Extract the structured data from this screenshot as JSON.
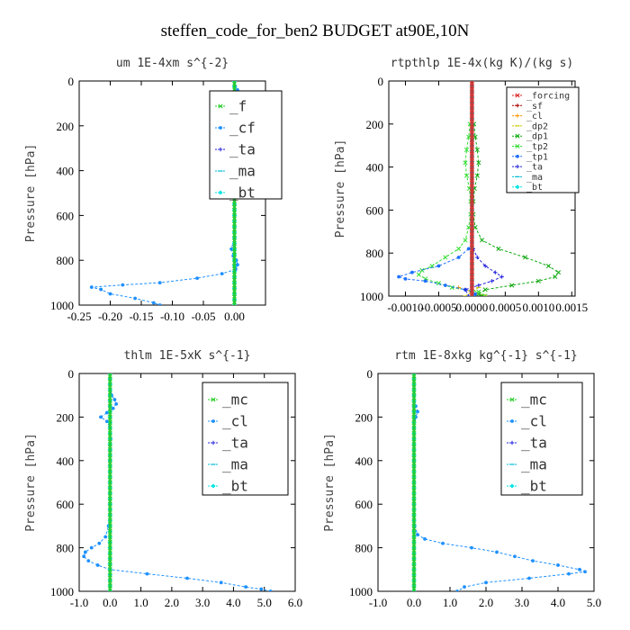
{
  "figure_title": "steffen_code_for_ben2  BUDGET at90E,10N",
  "chart_data": [
    {
      "type": "line",
      "title": "um  1E-4xm s^{-2}",
      "ylabel": "Pressure [hPa]",
      "xlabel": "",
      "xlim": [
        -0.25,
        0.05
      ],
      "ylim": [
        1000,
        0
      ],
      "xticks": [
        "-0.25",
        "-0.20",
        "-0.15",
        "-0.10",
        "-0.05",
        "0.00"
      ],
      "xtick_values": [
        -0.25,
        -0.2,
        -0.15,
        -0.1,
        -0.05,
        0.0
      ],
      "yticks": [
        "0",
        "200",
        "400",
        "600",
        "800",
        "1000"
      ],
      "ytick_values": [
        0,
        200,
        400,
        600,
        800,
        1000
      ],
      "legend_small": false,
      "legend": [
        "_f",
        "_cf",
        "_ta",
        "_ma",
        "_bt"
      ],
      "series": [
        {
          "name": "_f",
          "color": "#22cc22",
          "marker": "x",
          "pressure": [
            0,
            100,
            200,
            300,
            400,
            500,
            600,
            700,
            800,
            900,
            1000
          ],
          "values": [
            0,
            0,
            0,
            0,
            0,
            0,
            0,
            0,
            0,
            0,
            0
          ]
        },
        {
          "name": "_cf",
          "color": "#1e90ff",
          "marker": "dot",
          "pressure": [
            0,
            40,
            80,
            100,
            120,
            140,
            160,
            180,
            200,
            230,
            260,
            300,
            350,
            400,
            450,
            500,
            550,
            600,
            650,
            700,
            750,
            780,
            800,
            820,
            840,
            860,
            880,
            900,
            910,
            920,
            930,
            950,
            970,
            990,
            1000
          ],
          "values": [
            0,
            0.005,
            0.012,
            0.02,
            0.03,
            0.04,
            0.035,
            0.02,
            0.002,
            -0.018,
            -0.015,
            -0.005,
            -0.002,
            -0.003,
            0,
            0,
            0,
            0,
            0,
            0,
            -0.005,
            -0.002,
            0.003,
            0.005,
            0.002,
            -0.02,
            -0.06,
            -0.12,
            -0.18,
            -0.23,
            -0.215,
            -0.2,
            -0.16,
            -0.13,
            -0.12
          ]
        },
        {
          "name": "_ta",
          "color": "#2222dd",
          "marker": "plus",
          "pressure": [
            0,
            100,
            200,
            300,
            400,
            500,
            600,
            700,
            800,
            900,
            1000
          ],
          "values": [
            0,
            0,
            0,
            0,
            0,
            0,
            0,
            0,
            0,
            0,
            0
          ]
        },
        {
          "name": "_ma",
          "color": "#00bcd4",
          "marker": "dash",
          "pressure": [
            0,
            100,
            200,
            300,
            400,
            500,
            600,
            700,
            800,
            900,
            1000
          ],
          "values": [
            0,
            0,
            0,
            0,
            0,
            0,
            0,
            0,
            0,
            0,
            0
          ]
        },
        {
          "name": "_bt",
          "color": "#00e5e5",
          "marker": "diamond",
          "pressure": [
            0,
            100,
            200,
            300,
            400,
            500,
            600,
            700,
            800,
            900,
            1000
          ],
          "values": [
            0,
            0,
            0,
            0,
            0,
            0,
            0,
            0,
            0,
            0,
            0
          ]
        }
      ]
    },
    {
      "type": "line",
      "title": "rtpthlp  1E-4x(kg K)/(kg s)",
      "ylabel": "Pressure [hPa]",
      "xlabel": "",
      "xlim": [
        -0.00125,
        0.00155
      ],
      "ylim": [
        1000,
        0
      ],
      "xticks": [
        "-0.0010",
        "-0.0005",
        "0.0000",
        "0.0005",
        "0.0010",
        "0.0015"
      ],
      "xtick_values": [
        -0.001,
        -0.0005,
        0.0,
        0.0005,
        0.001,
        0.0015
      ],
      "yticks": [
        "0",
        "200",
        "400",
        "600",
        "800",
        "1000"
      ],
      "ytick_values": [
        0,
        200,
        400,
        600,
        800,
        1000
      ],
      "legend_small": true,
      "legend": [
        "_forcing",
        "_sf",
        "_cl",
        "_dp2",
        "_dp1",
        "_tp2",
        "_tp1",
        "_ta",
        "_ma",
        "_bt"
      ],
      "series": [
        {
          "name": "_forcing",
          "color": "#dd2222",
          "marker": "x",
          "pressure": [
            0,
            100,
            200,
            300,
            400,
            500,
            600,
            700,
            800,
            900,
            1000
          ],
          "values": [
            0,
            0,
            0,
            0,
            0,
            0,
            0,
            0,
            0,
            0,
            0
          ]
        },
        {
          "name": "_sf",
          "color": "#aa0000",
          "marker": "plus",
          "pressure": [
            0,
            200,
            400,
            600,
            800,
            1000
          ],
          "values": [
            0,
            0,
            0,
            0,
            0,
            0
          ]
        },
        {
          "name": "_cl",
          "color": "#ff9900",
          "marker": "plus",
          "pressure": [
            960,
            1000
          ],
          "values": [
            -0.0002,
            0.0002
          ]
        },
        {
          "name": "_dp2",
          "color": "#cccc00",
          "marker": "dash",
          "pressure": [
            960,
            1000
          ],
          "values": [
            0.0001,
            -0.0001
          ]
        },
        {
          "name": "_dp1",
          "color": "#11aa11",
          "marker": "x",
          "pressure": [
            200,
            260,
            320,
            380,
            440,
            500,
            560,
            620,
            680,
            740,
            780,
            820,
            860,
            890,
            910,
            930,
            950,
            970,
            990,
            1000
          ],
          "values": [
            3e-05,
            5e-05,
            8e-05,
            0.0001,
            8e-05,
            4e-05,
            2e-05,
            2e-05,
            5e-05,
            0.00015,
            0.0004,
            0.0008,
            0.00115,
            0.0013,
            0.00125,
            0.001,
            0.0006,
            0.0002,
            0.0001,
            0.00015
          ]
        },
        {
          "name": "_tp2",
          "color": "#33dd33",
          "marker": "x",
          "pressure": [
            200,
            260,
            320,
            380,
            440,
            500,
            560,
            620,
            680,
            740,
            780,
            820,
            860,
            880,
            900,
            920,
            940,
            960,
            980,
            1000
          ],
          "values": [
            -3e-05,
            -5e-05,
            -8e-05,
            -0.0001,
            -8e-05,
            -4e-05,
            -2e-05,
            -2e-05,
            -5e-05,
            -0.0001,
            -0.0002,
            -0.0004,
            -0.0006,
            -0.00075,
            -0.0008,
            -0.0007,
            -0.0005,
            -0.0003,
            0.0001,
            0.0002
          ]
        },
        {
          "name": "_tp1",
          "color": "#1e70ff",
          "marker": "dot",
          "pressure": [
            780,
            820,
            860,
            890,
            910,
            920,
            930,
            950,
            970,
            990,
            1000
          ],
          "values": [
            -5e-05,
            -0.0002,
            -0.0005,
            -0.0009,
            -0.0011,
            -0.001,
            -0.0007,
            -0.0004,
            -0.0001,
            5e-05,
            3e-05
          ]
        },
        {
          "name": "_ta",
          "color": "#2222dd",
          "marker": "plus",
          "pressure": [
            780,
            820,
            860,
            890,
            910,
            930,
            950,
            970,
            1000
          ],
          "values": [
            2e-05,
            8e-05,
            0.0002,
            0.00035,
            0.00045,
            0.0003,
            0.0001,
            -0.0001,
            -5e-05
          ]
        },
        {
          "name": "_ma",
          "color": "#00bcd4",
          "marker": "dash",
          "pressure": [
            0,
            200,
            400,
            600,
            800,
            1000
          ],
          "values": [
            0,
            0,
            0,
            0,
            0,
            0
          ]
        },
        {
          "name": "_bt",
          "color": "#00e5e5",
          "marker": "diamond",
          "pressure": [
            0,
            200,
            400,
            600,
            800,
            1000
          ],
          "values": [
            0,
            0,
            0,
            0,
            0,
            0
          ]
        }
      ]
    },
    {
      "type": "line",
      "title": "thlm  1E-5xK s^{-1}",
      "ylabel": "Pressure [hPa]",
      "xlabel": "",
      "xlim": [
        -1.0,
        6.0
      ],
      "ylim": [
        1000,
        0
      ],
      "xticks": [
        "-1.0",
        "0.0",
        "1.0",
        "2.0",
        "3.0",
        "4.0",
        "5.0",
        "6.0"
      ],
      "xtick_values": [
        -1,
        0,
        1,
        2,
        3,
        4,
        5,
        6
      ],
      "yticks": [
        "0",
        "200",
        "400",
        "600",
        "800",
        "1000"
      ],
      "ytick_values": [
        0,
        200,
        400,
        600,
        800,
        1000
      ],
      "legend_small": false,
      "legend": [
        "_mc",
        "_cl",
        "_ta",
        "_ma",
        "_bt"
      ],
      "series": [
        {
          "name": "_mc",
          "color": "#22cc22",
          "marker": "x",
          "pressure": [
            0,
            100,
            200,
            300,
            400,
            500,
            600,
            700,
            800,
            900,
            1000
          ],
          "values": [
            0,
            0,
            0,
            0,
            0,
            0,
            0,
            0,
            0,
            0,
            0
          ]
        },
        {
          "name": "_cl",
          "color": "#1e90ff",
          "marker": "dot",
          "pressure": [
            0,
            50,
            100,
            120,
            140,
            160,
            180,
            200,
            220,
            250,
            300,
            350,
            400,
            450,
            500,
            550,
            600,
            650,
            700,
            750,
            780,
            800,
            820,
            840,
            860,
            880,
            900,
            920,
            940,
            960,
            980,
            990,
            1000
          ],
          "values": [
            0,
            0,
            0.05,
            0.15,
            0.2,
            0.1,
            -0.1,
            -0.3,
            -0.1,
            0,
            0.02,
            0.01,
            0,
            0,
            0,
            0,
            0,
            0,
            -0.05,
            -0.15,
            -0.35,
            -0.6,
            -0.8,
            -0.85,
            -0.7,
            -0.4,
            0,
            1.2,
            2.5,
            3.6,
            4.4,
            4.9,
            5.2
          ]
        },
        {
          "name": "_ta",
          "color": "#2222dd",
          "marker": "plus",
          "pressure": [
            0,
            100,
            200,
            300,
            400,
            500,
            600,
            700,
            800,
            900,
            1000
          ],
          "values": [
            0,
            0,
            0,
            0,
            0,
            0,
            0,
            0,
            0,
            0,
            0
          ]
        },
        {
          "name": "_ma",
          "color": "#00bcd4",
          "marker": "dash",
          "pressure": [
            0,
            100,
            200,
            300,
            400,
            500,
            600,
            700,
            800,
            900,
            1000
          ],
          "values": [
            0,
            0,
            0,
            0,
            0,
            0,
            0,
            0,
            0,
            0,
            0
          ]
        },
        {
          "name": "_bt",
          "color": "#00e5e5",
          "marker": "diamond",
          "pressure": [
            0,
            100,
            200,
            300,
            400,
            500,
            600,
            700,
            800,
            900,
            1000
          ],
          "values": [
            0,
            0,
            0,
            0,
            0,
            0,
            0,
            0,
            0,
            0,
            0
          ]
        }
      ]
    },
    {
      "type": "line",
      "title": "rtm  1E-8xkg kg^{-1} s^{-1}",
      "ylabel": "Pressure [hPa]",
      "xlabel": "",
      "xlim": [
        -1.0,
        5.0
      ],
      "ylim": [
        1000,
        0
      ],
      "xticks": [
        "-1.0",
        "0.0",
        "1.0",
        "2.0",
        "3.0",
        "4.0",
        "5.0"
      ],
      "xtick_values": [
        -1,
        0,
        1,
        2,
        3,
        4,
        5
      ],
      "yticks": [
        "0",
        "200",
        "400",
        "600",
        "800",
        "1000"
      ],
      "ytick_values": [
        0,
        200,
        400,
        600,
        800,
        1000
      ],
      "legend_small": false,
      "legend": [
        "_mc",
        "_cl",
        "_ta",
        "_ma",
        "_bt"
      ],
      "series": [
        {
          "name": "_mc",
          "color": "#22cc22",
          "marker": "x",
          "pressure": [
            0,
            100,
            200,
            300,
            400,
            500,
            600,
            700,
            800,
            900,
            1000
          ],
          "values": [
            0,
            0,
            0,
            0,
            0,
            0,
            0,
            0,
            0,
            0,
            0
          ]
        },
        {
          "name": "_cl",
          "color": "#1e90ff",
          "marker": "dot",
          "pressure": [
            0,
            100,
            150,
            175,
            200,
            250,
            300,
            400,
            500,
            600,
            700,
            740,
            760,
            780,
            800,
            820,
            840,
            860,
            880,
            900,
            910,
            920,
            940,
            960,
            980,
            1000
          ],
          "values": [
            0,
            0,
            0.05,
            0.1,
            0.05,
            0,
            0,
            0,
            0,
            0,
            0.02,
            0.1,
            0.3,
            0.8,
            1.6,
            2.3,
            2.8,
            3.3,
            4.0,
            4.6,
            4.75,
            4.3,
            3.2,
            2.0,
            1.4,
            1.2
          ]
        },
        {
          "name": "_ta",
          "color": "#2222dd",
          "marker": "plus",
          "pressure": [
            0,
            100,
            200,
            300,
            400,
            500,
            600,
            700,
            800,
            900,
            1000
          ],
          "values": [
            0,
            0,
            0,
            0,
            0,
            0,
            0,
            0,
            0,
            0,
            0
          ]
        },
        {
          "name": "_ma",
          "color": "#00bcd4",
          "marker": "dash",
          "pressure": [
            0,
            100,
            200,
            300,
            400,
            500,
            600,
            700,
            800,
            900,
            1000
          ],
          "values": [
            0,
            0,
            0,
            0,
            0,
            0,
            0,
            0,
            0,
            0,
            0
          ]
        },
        {
          "name": "_bt",
          "color": "#00e5e5",
          "marker": "diamond",
          "pressure": [
            0,
            100,
            200,
            300,
            400,
            500,
            600,
            700,
            800,
            900,
            1000
          ],
          "values": [
            0,
            0,
            0,
            0,
            0,
            0,
            0,
            0,
            0,
            0,
            0
          ]
        }
      ]
    }
  ]
}
